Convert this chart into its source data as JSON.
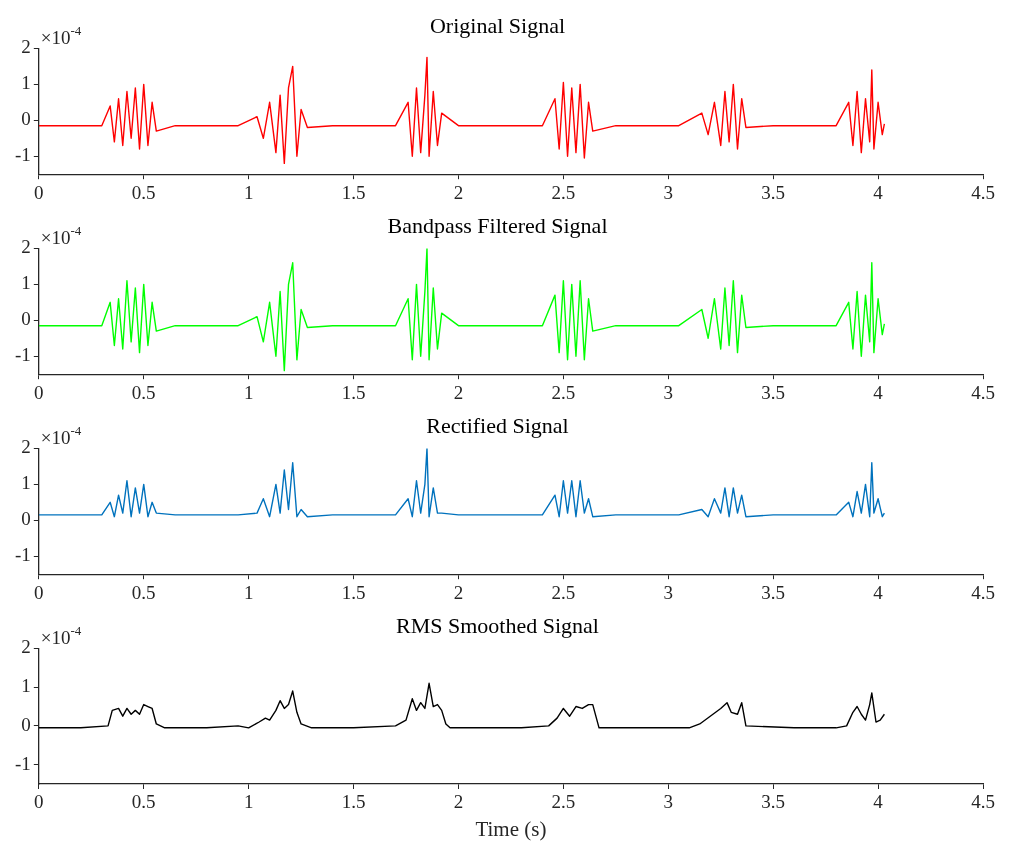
{
  "chart_data": [
    {
      "type": "line",
      "title": "Original Signal",
      "color": "#ff0000",
      "annotations": [
        "×10$^{-4}$"
      ],
      "xlim": [
        0,
        4.5
      ],
      "xticks": [
        0,
        0.5,
        1,
        1.5,
        2,
        2.5,
        3,
        3.5,
        4,
        4.5
      ],
      "ylim": [
        -1.5,
        2
      ],
      "yticks": [
        -1,
        0,
        1,
        2
      ],
      "x": [
        0,
        0.1,
        0.2,
        0.3,
        0.34,
        0.36,
        0.38,
        0.4,
        0.42,
        0.44,
        0.46,
        0.48,
        0.5,
        0.52,
        0.54,
        0.56,
        0.65,
        0.75,
        0.85,
        0.95,
        1.04,
        1.07,
        1.1,
        1.13,
        1.15,
        1.17,
        1.19,
        1.21,
        1.23,
        1.25,
        1.28,
        1.4,
        1.5,
        1.6,
        1.7,
        1.76,
        1.78,
        1.8,
        1.82,
        1.84,
        1.85,
        1.86,
        1.88,
        1.9,
        1.92,
        2.0,
        2.1,
        2.2,
        2.3,
        2.4,
        2.46,
        2.48,
        2.5,
        2.52,
        2.54,
        2.56,
        2.58,
        2.6,
        2.62,
        2.64,
        2.75,
        2.85,
        2.95,
        3.05,
        3.16,
        3.19,
        3.22,
        3.25,
        3.27,
        3.29,
        3.31,
        3.33,
        3.35,
        3.37,
        3.5,
        3.6,
        3.7,
        3.8,
        3.86,
        3.88,
        3.9,
        3.92,
        3.94,
        3.96,
        3.97,
        3.98,
        4.0,
        4.02,
        4.03
      ],
      "values": [
        -0.15,
        -0.15,
        -0.15,
        -0.15,
        0.4,
        -0.6,
        0.6,
        -0.7,
        0.8,
        -0.5,
        0.9,
        -0.8,
        1.0,
        -0.7,
        0.5,
        -0.3,
        -0.15,
        -0.15,
        -0.15,
        -0.15,
        0.1,
        -0.5,
        0.5,
        -0.9,
        0.7,
        -1.2,
        0.9,
        1.5,
        -1.0,
        0.3,
        -0.2,
        -0.15,
        -0.15,
        -0.15,
        -0.15,
        0.5,
        -1.0,
        0.9,
        -0.9,
        0.7,
        1.75,
        -1.0,
        0.8,
        -0.7,
        0.2,
        -0.15,
        -0.15,
        -0.15,
        -0.15,
        -0.15,
        0.6,
        -0.8,
        1.05,
        -1.0,
        0.9,
        -0.9,
        1.0,
        -1.05,
        0.5,
        -0.3,
        -0.15,
        -0.15,
        -0.15,
        -0.15,
        0.2,
        -0.4,
        0.5,
        -0.7,
        0.8,
        -0.6,
        1.0,
        -0.8,
        0.6,
        -0.2,
        -0.15,
        -0.15,
        -0.15,
        -0.15,
        0.5,
        -0.7,
        0.8,
        -0.9,
        0.6,
        -0.6,
        1.4,
        -0.8,
        0.5,
        -0.4,
        -0.1
      ]
    },
    {
      "type": "line",
      "title": "Bandpass Filtered Signal",
      "color": "#00ff00",
      "annotations": [
        "×10$^{-4}$"
      ],
      "xlim": [
        0,
        4.5
      ],
      "xticks": [
        0,
        0.5,
        1,
        1.5,
        2,
        2.5,
        3,
        3.5,
        4,
        4.5
      ],
      "ylim": [
        -1.5,
        2
      ],
      "yticks": [
        -1,
        0,
        1,
        2
      ],
      "x": [
        0,
        0.1,
        0.2,
        0.3,
        0.34,
        0.36,
        0.38,
        0.4,
        0.42,
        0.44,
        0.46,
        0.48,
        0.5,
        0.52,
        0.54,
        0.56,
        0.65,
        0.75,
        0.85,
        0.95,
        1.04,
        1.07,
        1.1,
        1.13,
        1.15,
        1.17,
        1.19,
        1.21,
        1.23,
        1.25,
        1.28,
        1.4,
        1.5,
        1.6,
        1.7,
        1.76,
        1.78,
        1.8,
        1.82,
        1.84,
        1.85,
        1.86,
        1.88,
        1.9,
        1.92,
        2.0,
        2.1,
        2.2,
        2.3,
        2.4,
        2.46,
        2.48,
        2.5,
        2.52,
        2.54,
        2.56,
        2.58,
        2.6,
        2.62,
        2.64,
        2.75,
        2.85,
        2.95,
        3.05,
        3.16,
        3.19,
        3.22,
        3.25,
        3.27,
        3.29,
        3.31,
        3.33,
        3.35,
        3.37,
        3.5,
        3.6,
        3.7,
        3.8,
        3.86,
        3.88,
        3.9,
        3.92,
        3.94,
        3.96,
        3.97,
        3.98,
        4.0,
        4.02,
        4.03
      ],
      "values": [
        -0.15,
        -0.15,
        -0.15,
        -0.15,
        0.5,
        -0.7,
        0.6,
        -0.8,
        1.1,
        -0.6,
        0.9,
        -0.9,
        1.0,
        -0.7,
        0.5,
        -0.3,
        -0.15,
        -0.15,
        -0.15,
        -0.15,
        0.1,
        -0.6,
        0.5,
        -1.0,
        0.8,
        -1.4,
        1.0,
        1.6,
        -1.1,
        0.3,
        -0.2,
        -0.15,
        -0.15,
        -0.15,
        -0.15,
        0.6,
        -1.1,
        1.0,
        -1.0,
        0.8,
        2.0,
        -1.1,
        0.9,
        -0.8,
        0.2,
        -0.15,
        -0.15,
        -0.15,
        -0.15,
        -0.15,
        0.7,
        -0.9,
        1.1,
        -1.1,
        1.0,
        -1.0,
        1.1,
        -1.1,
        0.6,
        -0.3,
        -0.15,
        -0.15,
        -0.15,
        -0.15,
        0.3,
        -0.5,
        0.6,
        -0.8,
        0.9,
        -0.7,
        1.1,
        -0.9,
        0.7,
        -0.2,
        -0.15,
        -0.15,
        -0.15,
        -0.15,
        0.5,
        -0.8,
        0.8,
        -1.0,
        0.7,
        -0.6,
        1.6,
        -0.9,
        0.6,
        -0.4,
        -0.1
      ]
    },
    {
      "type": "line",
      "title": "Rectified Signal",
      "color": "#0072bd",
      "annotations": [
        "×10$^{-4}$"
      ],
      "xlim": [
        0,
        4.5
      ],
      "xticks": [
        0,
        0.5,
        1,
        1.5,
        2,
        2.5,
        3,
        3.5,
        4,
        4.5
      ],
      "ylim": [
        -1.5,
        2
      ],
      "yticks": [
        -1,
        0,
        1,
        2
      ],
      "x": [
        0,
        0.1,
        0.2,
        0.3,
        0.34,
        0.36,
        0.38,
        0.4,
        0.42,
        0.44,
        0.46,
        0.48,
        0.5,
        0.52,
        0.54,
        0.56,
        0.65,
        0.75,
        0.85,
        0.95,
        1.04,
        1.07,
        1.1,
        1.13,
        1.15,
        1.17,
        1.19,
        1.21,
        1.23,
        1.25,
        1.28,
        1.4,
        1.5,
        1.6,
        1.7,
        1.76,
        1.78,
        1.8,
        1.82,
        1.84,
        1.85,
        1.86,
        1.88,
        1.9,
        1.92,
        2.0,
        2.1,
        2.2,
        2.3,
        2.4,
        2.46,
        2.48,
        2.5,
        2.52,
        2.54,
        2.56,
        2.58,
        2.6,
        2.62,
        2.64,
        2.75,
        2.85,
        2.95,
        3.05,
        3.16,
        3.19,
        3.22,
        3.25,
        3.27,
        3.29,
        3.31,
        3.33,
        3.35,
        3.37,
        3.5,
        3.6,
        3.7,
        3.8,
        3.86,
        3.88,
        3.9,
        3.92,
        3.94,
        3.96,
        3.97,
        3.98,
        4.0,
        4.02,
        4.03
      ],
      "values": [
        0.15,
        0.15,
        0.15,
        0.15,
        0.5,
        0.1,
        0.7,
        0.2,
        1.1,
        0.1,
        0.9,
        0.2,
        1.0,
        0.1,
        0.5,
        0.2,
        0.15,
        0.15,
        0.15,
        0.15,
        0.2,
        0.6,
        0.1,
        1.0,
        0.2,
        1.4,
        0.3,
        1.6,
        0.1,
        0.3,
        0.1,
        0.15,
        0.15,
        0.15,
        0.15,
        0.6,
        0.1,
        1.1,
        0.2,
        1.0,
        2.0,
        0.1,
        0.9,
        0.2,
        0.2,
        0.15,
        0.15,
        0.15,
        0.15,
        0.15,
        0.7,
        0.1,
        1.1,
        0.2,
        1.1,
        0.1,
        1.1,
        0.2,
        0.6,
        0.1,
        0.15,
        0.15,
        0.15,
        0.15,
        0.3,
        0.1,
        0.6,
        0.2,
        0.9,
        0.1,
        0.9,
        0.2,
        0.7,
        0.1,
        0.15,
        0.15,
        0.15,
        0.15,
        0.5,
        0.1,
        0.8,
        0.2,
        1.0,
        0.1,
        1.6,
        0.2,
        0.6,
        0.1,
        0.2
      ]
    },
    {
      "type": "line",
      "title": "RMS Smoothed Signal",
      "xlabel": "Time (s)",
      "color": "#000000",
      "annotations": [
        "×10$^{-4}$"
      ],
      "xlim": [
        0,
        4.5
      ],
      "xticks": [
        0,
        0.5,
        1,
        1.5,
        2,
        2.5,
        3,
        3.5,
        4,
        4.5
      ],
      "ylim": [
        -1.5,
        2
      ],
      "yticks": [
        -1,
        0,
        1,
        2
      ],
      "x": [
        0,
        0.2,
        0.33,
        0.35,
        0.38,
        0.4,
        0.42,
        0.44,
        0.46,
        0.48,
        0.5,
        0.52,
        0.54,
        0.56,
        0.6,
        0.8,
        0.95,
        1.0,
        1.05,
        1.08,
        1.1,
        1.13,
        1.15,
        1.17,
        1.19,
        1.21,
        1.23,
        1.25,
        1.3,
        1.5,
        1.7,
        1.75,
        1.78,
        1.8,
        1.82,
        1.84,
        1.86,
        1.88,
        1.9,
        1.92,
        1.94,
        1.96,
        2.1,
        2.3,
        2.43,
        2.47,
        2.5,
        2.53,
        2.56,
        2.59,
        2.62,
        2.64,
        2.67,
        2.9,
        3.1,
        3.15,
        3.2,
        3.25,
        3.28,
        3.3,
        3.33,
        3.35,
        3.37,
        3.6,
        3.8,
        3.85,
        3.88,
        3.9,
        3.92,
        3.94,
        3.96,
        3.97,
        3.99,
        4.01,
        4.03
      ],
      "values": [
        -0.05,
        -0.05,
        0.0,
        0.4,
        0.45,
        0.25,
        0.45,
        0.3,
        0.4,
        0.3,
        0.55,
        0.5,
        0.45,
        0.05,
        -0.05,
        -0.05,
        0.0,
        -0.05,
        0.1,
        0.2,
        0.15,
        0.4,
        0.65,
        0.45,
        0.55,
        0.9,
        0.35,
        0.05,
        -0.05,
        -0.05,
        0.0,
        0.15,
        0.7,
        0.4,
        0.6,
        0.45,
        1.1,
        0.5,
        0.55,
        0.4,
        0.05,
        -0.05,
        -0.05,
        -0.05,
        0.0,
        0.2,
        0.45,
        0.25,
        0.5,
        0.45,
        0.55,
        0.55,
        -0.05,
        -0.05,
        -0.05,
        0.05,
        0.25,
        0.45,
        0.6,
        0.35,
        0.3,
        0.6,
        0.0,
        -0.05,
        -0.05,
        0.0,
        0.35,
        0.5,
        0.3,
        0.15,
        0.55,
        0.85,
        0.1,
        0.15,
        0.3
      ]
    }
  ]
}
